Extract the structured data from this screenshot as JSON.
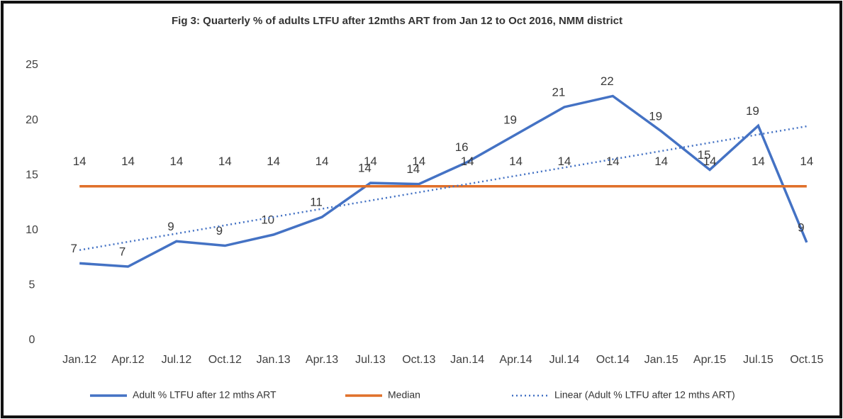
{
  "chart_data": {
    "type": "line",
    "title": "Fig 3: Quarterly % of adults LTFU after 12mths ART from Jan 12 to Oct 2016, NMM district",
    "categories": [
      "Jan.12",
      "Apr.12",
      "Jul.12",
      "Oct.12",
      "Jan.13",
      "Apr.13",
      "Jul.13",
      "Oct.13",
      "Jan.14",
      "Apr.14",
      "Jul.14",
      "Oct.14",
      "Jan.15",
      "Apr.15",
      "Jul.15",
      "Oct.15"
    ],
    "series": [
      {
        "name": "Adult % LTFU after 12 mths ART",
        "color": "#4472c4",
        "style": "solid",
        "values": [
          7.0,
          6.7,
          9.0,
          8.6,
          9.6,
          11.2,
          14.3,
          14.2,
          16.2,
          18.7,
          21.2,
          22.2,
          19.0,
          15.5,
          19.5,
          8.9
        ],
        "value_labels": [
          "7",
          "7",
          "9",
          "9",
          "10",
          "11",
          "14",
          "14",
          "16",
          "19",
          "21",
          "22",
          "19",
          "15",
          "19",
          "9"
        ]
      },
      {
        "name": "Median",
        "color": "#e0702a",
        "style": "solid",
        "values": [
          14,
          14,
          14,
          14,
          14,
          14,
          14,
          14,
          14,
          14,
          14,
          14,
          14,
          14,
          14,
          14
        ],
        "value_labels": [
          "14",
          "14",
          "14",
          "14",
          "14",
          "14",
          "14",
          "14",
          "14",
          "14",
          "14",
          "14",
          "14",
          "14",
          "14",
          "14"
        ]
      },
      {
        "name": "Linear (Adult % LTFU after 12 mths ART)",
        "color": "#4472c4",
        "style": "dotted",
        "values": [
          8.2,
          8.95,
          9.7,
          10.45,
          11.2,
          11.95,
          12.7,
          13.45,
          14.2,
          14.95,
          15.7,
          16.45,
          17.2,
          17.95,
          18.7,
          19.45
        ]
      }
    ],
    "ylim": [
      0,
      25
    ],
    "yticks": [
      0,
      5,
      10,
      15,
      20,
      25
    ],
    "grid": false,
    "legend": "bottom"
  }
}
